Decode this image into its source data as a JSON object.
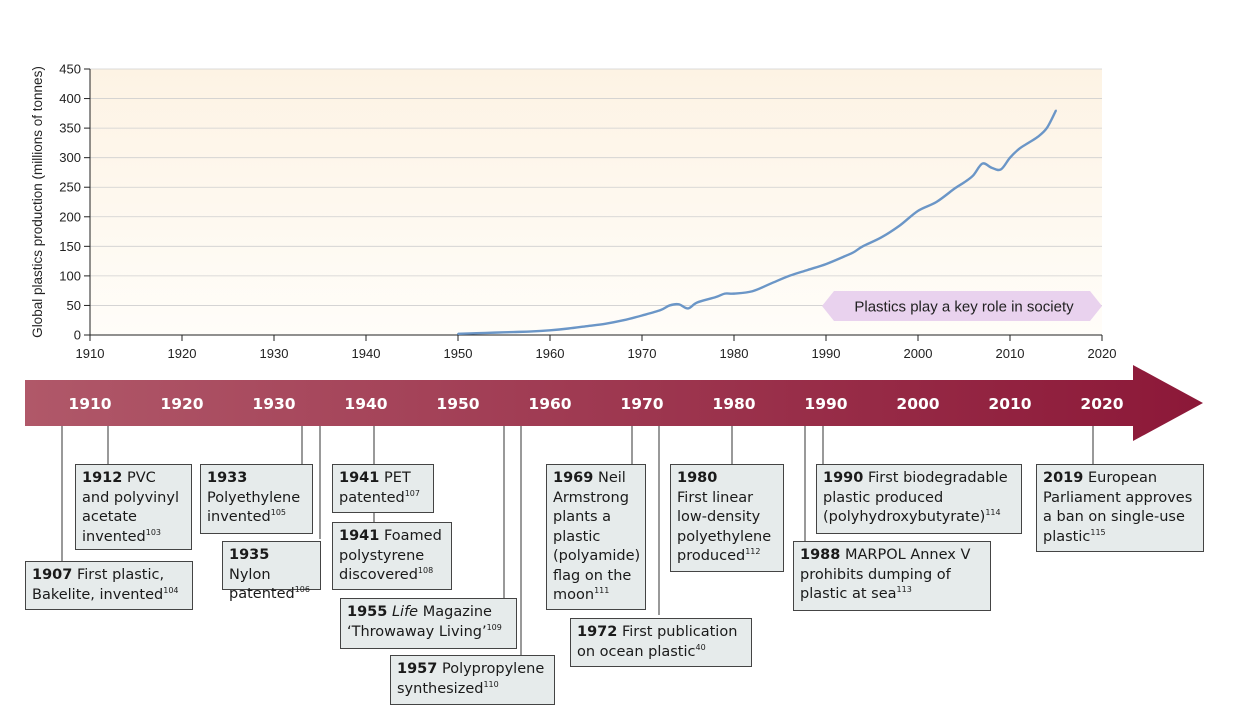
{
  "chart_data": {
    "type": "area",
    "ylabel": "Global plastics production (millions of tonnes)",
    "xlabel": "",
    "xlim": [
      1910,
      2020
    ],
    "ylim": [
      0,
      450
    ],
    "xticks": [
      1910,
      1920,
      1930,
      1940,
      1950,
      1960,
      1970,
      1980,
      1990,
      2000,
      2010,
      2020
    ],
    "yticks": [
      0,
      50,
      100,
      150,
      200,
      250,
      300,
      350,
      400,
      450
    ],
    "grid": true,
    "legend": "none",
    "series": [
      {
        "x": [
          1950,
          1952,
          1954,
          1956,
          1958,
          1960,
          1962,
          1964,
          1966,
          1968,
          1970,
          1972,
          1973,
          1974,
          1975,
          1976,
          1978,
          1979,
          1980,
          1982,
          1984,
          1986,
          1988,
          1990,
          1992,
          1993,
          1994,
          1996,
          1998,
          2000,
          2002,
          2004,
          2005,
          2006,
          2007,
          2008,
          2009,
          2010,
          2011,
          2012,
          2013,
          2014,
          2015
        ],
        "values": [
          2,
          3,
          4,
          5,
          6,
          8,
          11,
          15,
          19,
          25,
          33,
          42,
          50,
          52,
          45,
          55,
          64,
          70,
          70,
          74,
          87,
          100,
          110,
          120,
          133,
          140,
          150,
          165,
          185,
          210,
          225,
          248,
          258,
          270,
          290,
          283,
          280,
          300,
          315,
          325,
          335,
          350,
          380
        ],
        "color": "#6b96c7"
      }
    ],
    "annotation": "Plastics play a key role in society"
  },
  "timeline": {
    "years": [
      "1910",
      "1920",
      "1930",
      "1940",
      "1950",
      "1960",
      "1970",
      "1980",
      "1990",
      "2000",
      "2010",
      "2020"
    ],
    "colors": {
      "start": "#b05869",
      "end": "#8c1838"
    },
    "events": [
      {
        "year": "1912",
        "parts": [
          {
            "t": " PVC"
          },
          {
            "br": 1
          },
          {
            "t": "and polyvinyl"
          },
          {
            "br": 1
          },
          {
            "t": "acetate"
          },
          {
            "br": 1
          },
          {
            "t": "invented"
          },
          {
            "sup": "103"
          }
        ]
      },
      {
        "year": "1907",
        "parts": [
          {
            "t": " First plastic,"
          },
          {
            "br": 1
          },
          {
            "t": "Bakelite, invented"
          },
          {
            "sup": "104"
          }
        ]
      },
      {
        "year": "1933",
        "parts": [
          {
            "br": 1
          },
          {
            "t": "Polyethylene"
          },
          {
            "br": 1
          },
          {
            "t": "invented"
          },
          {
            "sup": "105"
          }
        ]
      },
      {
        "year": "1935",
        "parts": [
          {
            "t": " Nylon"
          },
          {
            "br": 1
          },
          {
            "t": "patented"
          },
          {
            "sup": "106"
          }
        ]
      },
      {
        "year": "1941",
        "parts": [
          {
            "t": " PET"
          },
          {
            "br": 1
          },
          {
            "t": "patented"
          },
          {
            "sup": "107"
          }
        ]
      },
      {
        "year": "1941",
        "parts": [
          {
            "t": " Foamed"
          },
          {
            "br": 1
          },
          {
            "t": "polystyrene"
          },
          {
            "br": 1
          },
          {
            "t": "discovered"
          },
          {
            "sup": "108"
          }
        ]
      },
      {
        "year": "1955",
        "parts": [
          {
            "t": " "
          },
          {
            "i": "Life"
          },
          {
            "t": " Magazine"
          },
          {
            "br": 1
          },
          {
            "t": "‘Throwaway Living’"
          },
          {
            "sup": "109"
          }
        ]
      },
      {
        "year": "1957",
        "parts": [
          {
            "t": " Polypropylene"
          },
          {
            "br": 1
          },
          {
            "t": "synthesized"
          },
          {
            "sup": "110"
          }
        ]
      },
      {
        "year": "1969",
        "parts": [
          {
            "t": " Neil"
          },
          {
            "br": 1
          },
          {
            "t": "Armstrong"
          },
          {
            "br": 1
          },
          {
            "t": "plants a"
          },
          {
            "br": 1
          },
          {
            "t": "plastic"
          },
          {
            "br": 1
          },
          {
            "t": "(polyamide)"
          },
          {
            "br": 1
          },
          {
            "t": "flag on the"
          },
          {
            "br": 1
          },
          {
            "t": "moon"
          },
          {
            "sup": "111"
          }
        ]
      },
      {
        "year": "1972",
        "parts": [
          {
            "t": " First publication"
          },
          {
            "br": 1
          },
          {
            "t": "on ocean plastic"
          },
          {
            "sup": "40"
          }
        ]
      },
      {
        "year": "1980",
        "parts": [
          {
            "br": 1
          },
          {
            "t": "First linear"
          },
          {
            "br": 1
          },
          {
            "t": "low-density"
          },
          {
            "br": 1
          },
          {
            "t": "polyethylene"
          },
          {
            "br": 1
          },
          {
            "t": "produced"
          },
          {
            "sup": "112"
          }
        ]
      },
      {
        "year": "1988",
        "parts": [
          {
            "t": " MARPOL Annex V"
          },
          {
            "br": 1
          },
          {
            "t": "prohibits dumping of"
          },
          {
            "br": 1
          },
          {
            "t": "plastic at sea"
          },
          {
            "sup": "113"
          }
        ]
      },
      {
        "year": "1990",
        "parts": [
          {
            "t": " First biodegradable"
          },
          {
            "br": 1
          },
          {
            "t": "plastic produced"
          },
          {
            "br": 1
          },
          {
            "t": "(polyhydroxybutyrate)"
          },
          {
            "sup": "114"
          }
        ]
      },
      {
        "year": "2019",
        "parts": [
          {
            "t": " European"
          },
          {
            "br": 1
          },
          {
            "t": "Parliament approves"
          },
          {
            "br": 1
          },
          {
            "t": "a ban on single-use"
          },
          {
            "br": 1
          },
          {
            "t": "plastic"
          },
          {
            "sup": "115"
          }
        ]
      }
    ]
  }
}
